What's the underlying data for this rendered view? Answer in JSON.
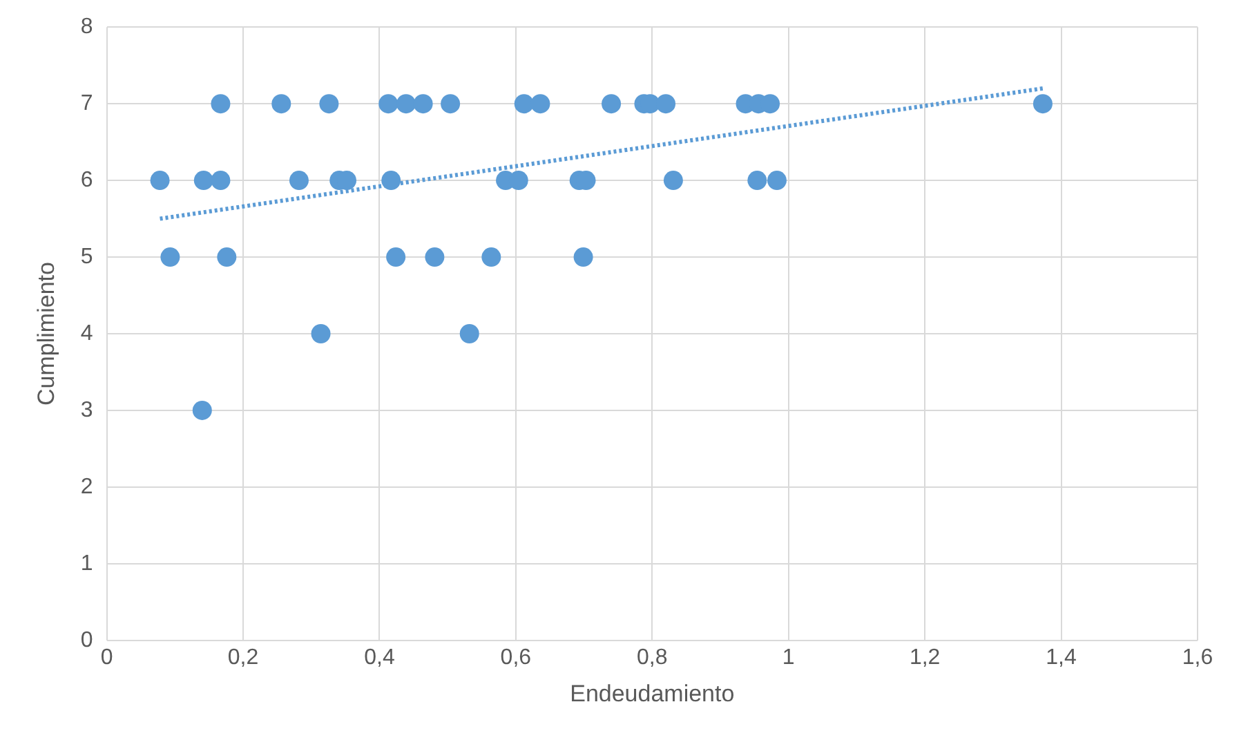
{
  "chart_data": {
    "type": "scatter",
    "xlabel": "Endeudamiento",
    "ylabel": "Cumplimiento",
    "xlim": [
      0,
      1.6
    ],
    "ylim": [
      0,
      8
    ],
    "xticks": [
      0,
      {
        "value": 0.2,
        "label": "0,2"
      },
      {
        "value": 0.4,
        "label": "0,4"
      },
      {
        "value": 0.6,
        "label": "0,6"
      },
      {
        "value": 0.8,
        "label": "0,8"
      },
      1,
      {
        "value": 1.2,
        "label": "1,2"
      },
      {
        "value": 1.4,
        "label": "1,4"
      },
      {
        "value": 1.6,
        "label": "1,6"
      }
    ],
    "yticks": [
      0,
      1,
      2,
      3,
      4,
      5,
      6,
      7,
      8
    ],
    "grid": true,
    "legend": false,
    "marker": "circle",
    "series": [
      {
        "type": "scatter",
        "color": "#5b9bd5",
        "x": [
          0.167,
          0.256,
          0.326,
          0.413,
          0.439,
          0.464,
          0.504,
          0.612,
          0.636,
          0.74,
          0.788,
          0.797,
          0.82,
          0.937,
          0.956,
          0.973,
          1.373,
          0.078,
          0.142,
          0.167,
          0.282,
          0.341,
          0.352,
          0.417,
          0.585,
          0.604,
          0.693,
          0.703,
          0.831,
          0.954,
          0.983,
          0.093,
          0.176,
          0.424,
          0.481,
          0.564,
          0.699,
          0.314,
          0.532,
          0.14
        ],
        "values": [
          7,
          7,
          7,
          7,
          7,
          7,
          7,
          7,
          7,
          7,
          7,
          7,
          7,
          7,
          7,
          7,
          7,
          6,
          6,
          6,
          6,
          6,
          6,
          6,
          6,
          6,
          6,
          6,
          6,
          6,
          6,
          5,
          5,
          5,
          5,
          5,
          5,
          4,
          4,
          3
        ]
      },
      {
        "type": "line",
        "color": "#5b9bd5",
        "line_style": "dotted",
        "marker": "none",
        "x": [
          0.078,
          1.373
        ],
        "values": [
          5.5,
          7.2
        ]
      }
    ]
  }
}
